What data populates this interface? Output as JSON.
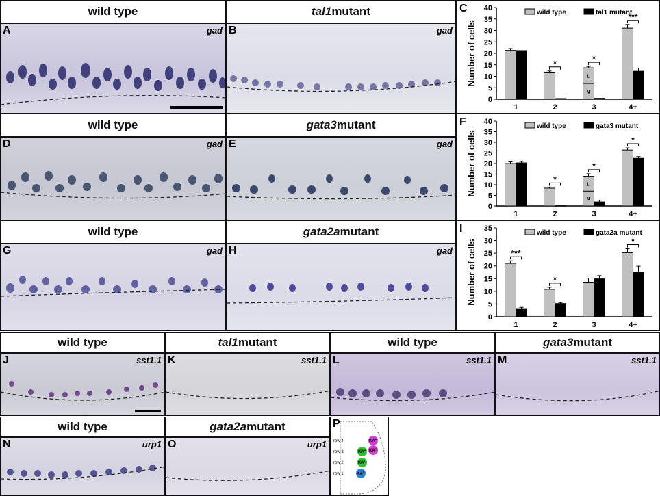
{
  "panels": {
    "A": {
      "letter": "A",
      "gene": "gad",
      "header_prefix": "",
      "header_italic": "",
      "header_text": "wild type"
    },
    "B": {
      "letter": "B",
      "gene": "gad",
      "header_prefix": "",
      "header_italic": "tal1",
      "header_text": " mutant"
    },
    "D": {
      "letter": "D",
      "gene": "gad",
      "header_prefix": "",
      "header_italic": "",
      "header_text": "wild type"
    },
    "E": {
      "letter": "E",
      "gene": "gad",
      "header_prefix": "",
      "header_italic": "gata3",
      "header_text": " mutant"
    },
    "G": {
      "letter": "G",
      "gene": "gad",
      "header_prefix": "",
      "header_italic": "",
      "header_text": "wild type"
    },
    "H": {
      "letter": "H",
      "gene": "gad",
      "header_prefix": "",
      "header_italic": "gata2a",
      "header_text": " mutant"
    },
    "J": {
      "letter": "J",
      "gene": "sst1.1",
      "header_italic": "",
      "header_text": "wild type"
    },
    "K": {
      "letter": "K",
      "gene": "sst1.1",
      "header_italic": "tal1",
      "header_text": " mutant"
    },
    "L": {
      "letter": "L",
      "gene": "sst1.1",
      "header_italic": "",
      "header_text": "wild type"
    },
    "M": {
      "letter": "M",
      "gene": "sst1.1",
      "header_italic": "gata3",
      "header_text": " mutant"
    },
    "N": {
      "letter": "N",
      "gene": "urp1",
      "header_italic": "",
      "header_text": "wild type"
    },
    "O": {
      "letter": "O",
      "gene": "urp1",
      "header_italic": "gata2a",
      "header_text": " mutant"
    },
    "P": {
      "letter": "P"
    }
  },
  "schematic": {
    "rows": [
      "row 4",
      "row 3",
      "row 2",
      "row 1"
    ],
    "cells": [
      "KA\"",
      "KA\"",
      "KA'",
      "KA\"",
      "KA'"
    ],
    "colors": {
      "ka_double": "#e040e0",
      "ka_single": "#30c030",
      "ka_prime": "#3080d0"
    }
  },
  "chart_data": [
    {
      "panel": "C",
      "type": "bar",
      "ylabel": "Number of cells",
      "ylim": [
        0,
        40
      ],
      "yticks": [
        0,
        5,
        10,
        15,
        20,
        25,
        30,
        35,
        40
      ],
      "categories": [
        "1",
        "2",
        "3",
        "4+"
      ],
      "series": [
        {
          "name": "wild type",
          "color": "#c0c0c0",
          "values": [
            21.3,
            11.8,
            13.7,
            31.0
          ],
          "errors": [
            0.8,
            0.5,
            0.6,
            1.6
          ]
        },
        {
          "name": "tal1 mutant",
          "color": "#000000",
          "values": [
            21.2,
            0.3,
            0.4,
            12.2
          ],
          "errors": [
            0,
            0,
            0,
            1.4
          ]
        }
      ],
      "legend": [
        "wild type",
        "tal1 mutant"
      ],
      "significance": [
        {
          "category": "2",
          "label": "*"
        },
        {
          "category": "3",
          "label": "*"
        },
        {
          "category": "4+",
          "label": "***"
        }
      ],
      "bar_inner_labels": {
        "category": "3",
        "labels": [
          "L",
          "M"
        ]
      }
    },
    {
      "panel": "F",
      "type": "bar",
      "ylabel": "Number of cells",
      "ylim": [
        0,
        40
      ],
      "yticks": [
        0,
        5,
        10,
        15,
        20,
        25,
        30,
        35,
        40
      ],
      "categories": [
        "1",
        "2",
        "3",
        "4+"
      ],
      "series": [
        {
          "name": "wild type",
          "color": "#c0c0c0",
          "values": [
            20.0,
            8.4,
            14.0,
            26.4
          ],
          "errors": [
            0.8,
            0.5,
            1.2,
            1.0
          ]
        },
        {
          "name": "gata3 mutant",
          "color": "#000000",
          "values": [
            20.3,
            0.1,
            1.9,
            22.5
          ],
          "errors": [
            0.7,
            0,
            0.8,
            0.8
          ]
        }
      ],
      "legend": [
        "wild type",
        "gata3 mutant"
      ],
      "significance": [
        {
          "category": "2",
          "label": "*"
        },
        {
          "category": "3",
          "label": "*"
        },
        {
          "category": "4+",
          "label": "*"
        }
      ],
      "bar_inner_labels": {
        "category": "3",
        "labels": [
          "L",
          "M"
        ]
      }
    },
    {
      "panel": "I",
      "type": "bar",
      "ylabel": "Number of cells",
      "ylim": [
        0,
        35
      ],
      "yticks": [
        0,
        5,
        10,
        15,
        20,
        25,
        30,
        35
      ],
      "categories": [
        "1",
        "2",
        "3",
        "4+"
      ],
      "series": [
        {
          "name": "wild type",
          "color": "#c0c0c0",
          "values": [
            21.0,
            10.8,
            13.6,
            25.2
          ],
          "errors": [
            1.0,
            0.8,
            1.6,
            1.6
          ]
        },
        {
          "name": "gata2a mutant",
          "color": "#000000",
          "values": [
            3.2,
            5.2,
            14.9,
            17.6
          ],
          "errors": [
            0.5,
            0.4,
            1.3,
            2.3
          ]
        }
      ],
      "legend": [
        "wild type",
        "gata2a mutant"
      ],
      "significance": [
        {
          "category": "1",
          "label": "***"
        },
        {
          "category": "2",
          "label": "*"
        },
        {
          "category": "4+",
          "label": "*"
        }
      ]
    }
  ]
}
